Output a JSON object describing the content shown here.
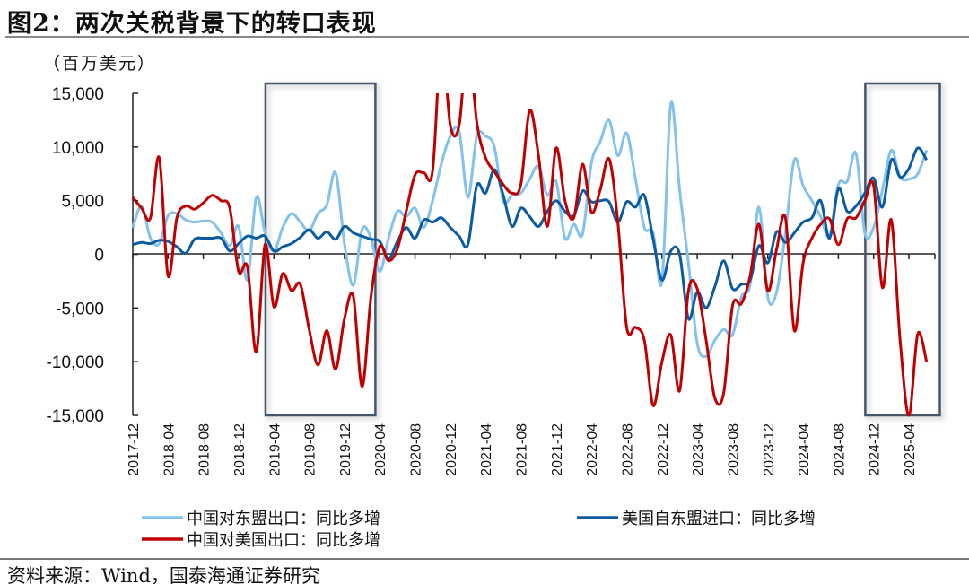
{
  "figure": {
    "title": "图2：两次关税背景下的转口表现",
    "unit": "（百万美元）",
    "source": "资料来源：Wind，国泰海通证券研究"
  },
  "chart_data": {
    "type": "line",
    "title": "图2：两次关税背景下的转口表现",
    "ylabel": "（百万美元）",
    "xlabel": "",
    "frequency": "monthly",
    "x_start": "2017-12",
    "x_end": "2025-06",
    "ylim": [
      -15000,
      15000
    ],
    "yticks": [
      15000,
      10000,
      5000,
      0,
      -5000,
      -10000,
      -15000
    ],
    "ytick_labels": [
      "15,000",
      "10,000",
      "5,000",
      "0",
      "-5,000",
      "-10,000",
      "-15,000"
    ],
    "xtick_labels": [
      "2017-12",
      "2018-04",
      "2018-08",
      "2018-12",
      "2019-04",
      "2019-08",
      "2019-12",
      "2020-04",
      "2020-08",
      "2020-12",
      "2021-04",
      "2021-08",
      "2021-12",
      "2022-04",
      "2022-08",
      "2022-12",
      "2023-04",
      "2023-08",
      "2023-12",
      "2024-04",
      "2024-08",
      "2024-12",
      "2025-04"
    ],
    "grid": false,
    "legend_position": "bottom",
    "highlight_periods": [
      [
        "2019-03",
        "2020-03"
      ],
      [
        "2024-11",
        "2025-07"
      ]
    ],
    "highlight_color": "#44546a",
    "series": [
      {
        "name": "中国对东盟出口：同比多增",
        "color": "#83c1ee",
        "values": [
          2500,
          4500,
          1500,
          1000,
          3600,
          3800,
          3200,
          3000,
          3100,
          3000,
          2000,
          800,
          2600,
          -2400,
          5300,
          2000,
          300,
          2500,
          3800,
          3000,
          2200,
          3800,
          4600,
          7600,
          1000,
          -2900,
          2300,
          1500,
          -1600,
          1500,
          4000,
          3500,
          4300,
          2500,
          5000,
          8500,
          11000,
          11500,
          5300,
          11000,
          11000,
          10000,
          5000,
          5500,
          5700,
          7000,
          8200,
          5500,
          6800,
          1500,
          2800,
          1900,
          8500,
          10500,
          12500,
          9200,
          11300,
          7000,
          2500,
          2000,
          -2500,
          14000,
          6000,
          -800,
          -8300,
          -9500,
          -8000,
          -7000,
          -7500,
          -4000,
          -2800,
          4400,
          -4000,
          -3500,
          2000,
          8800,
          6400,
          5000,
          3500,
          1700,
          6500,
          6800,
          9400,
          2000,
          2500,
          6000,
          9700,
          7200,
          7000,
          7500,
          9700
        ]
      },
      {
        "name": "美国自东盟进口：同比多增",
        "color": "#0c5aa0",
        "values": [
          900,
          1100,
          1000,
          1300,
          1200,
          700,
          100,
          1400,
          1500,
          1500,
          1500,
          300,
          1000,
          1700,
          1500,
          1700,
          300,
          700,
          1000,
          1600,
          2300,
          1500,
          2100,
          1400,
          2600,
          2000,
          1700,
          1400,
          1200,
          -400,
          1200,
          2500,
          1500,
          3200,
          3000,
          3400,
          2500,
          1700,
          900,
          6400,
          5700,
          7900,
          5500,
          2600,
          4300,
          3500,
          2600,
          4000,
          5000,
          4000,
          3600,
          5900,
          4900,
          5000,
          4900,
          3000,
          4900,
          4400,
          5500,
          1400,
          -2400,
          300,
          0,
          -6000,
          -3500,
          -5000,
          -3000,
          -600,
          -3200,
          -2800,
          -2400,
          800,
          -800,
          2100,
          1100,
          2000,
          3000,
          3400,
          5000,
          1500,
          6100,
          4000,
          4500,
          5700,
          7100,
          4400,
          8800,
          7200,
          8000,
          9900,
          8800
        ]
      },
      {
        "name": "中国对美国出口：同比多增",
        "color": "#c00000",
        "values": [
          5300,
          4300,
          3400,
          9000,
          -2000,
          3400,
          4500,
          4200,
          4800,
          5500,
          5000,
          4300,
          -1600,
          -1200,
          -9100,
          900,
          -4900,
          -1800,
          -3400,
          -2800,
          -7000,
          -10300,
          -7100,
          -10700,
          -6000,
          -3900,
          -12300,
          -4000,
          700,
          -600,
          500,
          4000,
          7400,
          7600,
          7800,
          20000,
          12000,
          12000,
          20000,
          12300,
          9000,
          7700,
          6500,
          5700,
          6500,
          13400,
          9200,
          2600,
          9900,
          5000,
          3400,
          8400,
          3900,
          6000,
          8900,
          3000,
          -6800,
          -6800,
          -8000,
          -14100,
          -10000,
          -7500,
          -12700,
          -3400,
          -3200,
          -8000,
          -13400,
          -12900,
          -4800,
          -4600,
          -2000,
          2800,
          -3400,
          500,
          3400,
          -7100,
          -800,
          1500,
          2800,
          3300,
          900,
          3300,
          3400,
          5000,
          6400,
          -3100,
          3200,
          -8000,
          -15000,
          -7400,
          -10000
        ]
      }
    ]
  }
}
